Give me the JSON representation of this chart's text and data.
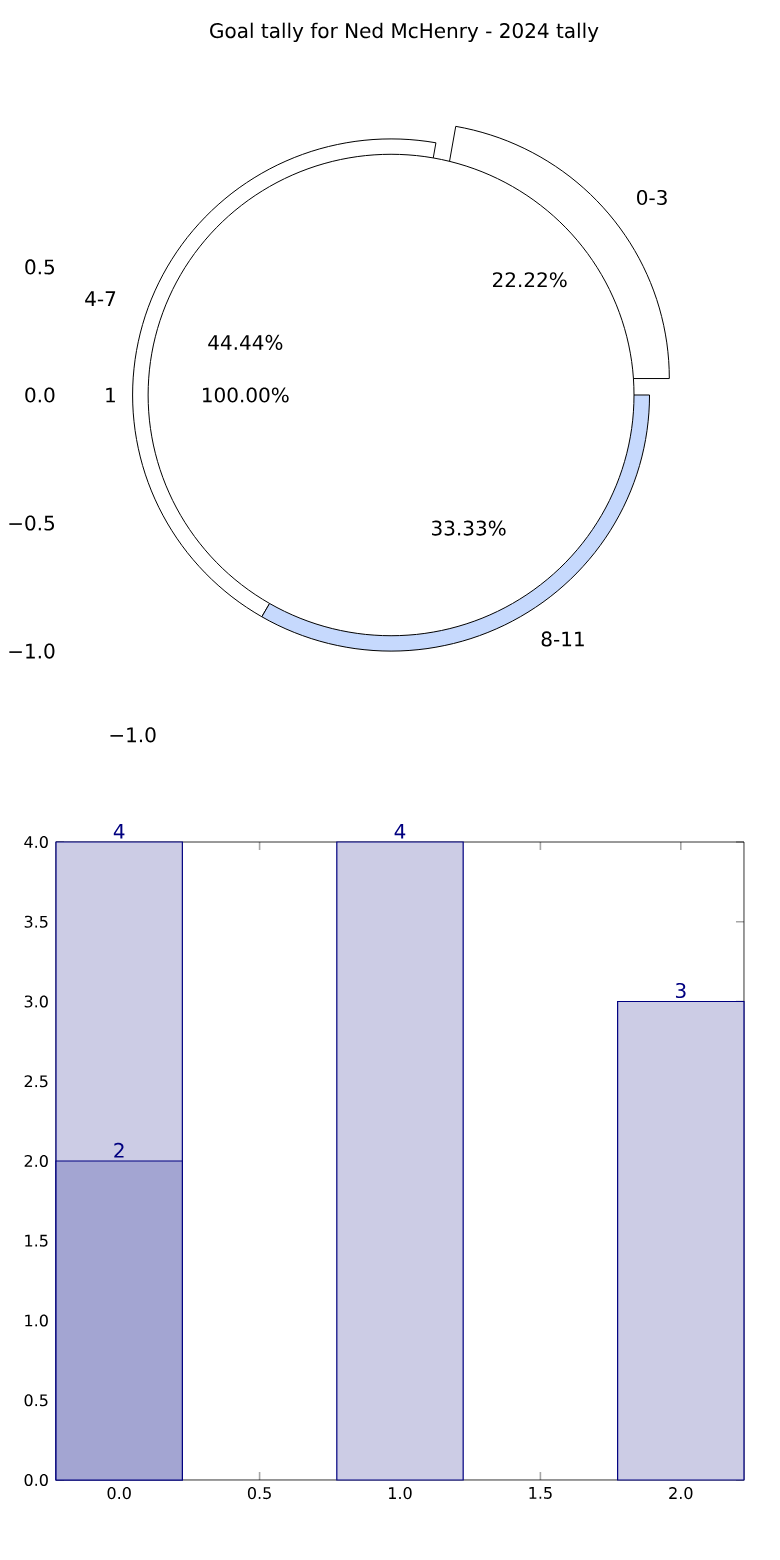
{
  "chart_data": [
    {
      "type": "pie",
      "title": "Goal tally for Ned McHenry - 2024 tally",
      "categories": [
        "0-3",
        "4-7",
        "8-11"
      ],
      "values": [
        22.22,
        44.44,
        33.33
      ],
      "value_labels": [
        "22.22%",
        "44.44%",
        "33.33%"
      ],
      "colors": [
        "#ffffff",
        "#ffffff",
        "#c6d9fd"
      ],
      "annotations": [
        "0.5",
        "0.0",
        "−0.5",
        "−1.0",
        "−1.0"
      ]
    },
    {
      "type": "pie",
      "categories": [
        "1"
      ],
      "values": [
        100
      ],
      "value_labels": [
        "100.00%"
      ],
      "colors": [
        "#ffffff"
      ]
    },
    {
      "type": "bar",
      "data_labels": true,
      "xlim": [
        -0.225,
        2.225
      ],
      "ylim": [
        0,
        4
      ],
      "xticks": [
        {
          "value": 0,
          "label": "0.0"
        },
        {
          "value": 0.5,
          "label": "0.5"
        },
        {
          "value": 1,
          "label": "1.0"
        },
        {
          "value": 1.5,
          "label": "1.5"
        },
        {
          "value": 2,
          "label": "2.0"
        }
      ],
      "yticks": [
        {
          "value": 0,
          "label": "0.0"
        },
        {
          "value": 0.5,
          "label": "0.5"
        },
        {
          "value": 1,
          "label": "1.0"
        },
        {
          "value": 1.5,
          "label": "1.5"
        },
        {
          "value": 2,
          "label": "2.0"
        },
        {
          "value": 2.5,
          "label": "2.5"
        },
        {
          "value": 3,
          "label": "3.0"
        },
        {
          "value": 3.5,
          "label": "3.5"
        },
        {
          "value": 4,
          "label": "4.0"
        }
      ],
      "series": [
        {
          "color": "#cccce5",
          "x": [
            0,
            1,
            2
          ],
          "values": [
            4,
            4,
            3
          ]
        },
        {
          "color": "#a3a5d2",
          "x": [
            0
          ],
          "values": [
            2
          ]
        }
      ]
    }
  ]
}
